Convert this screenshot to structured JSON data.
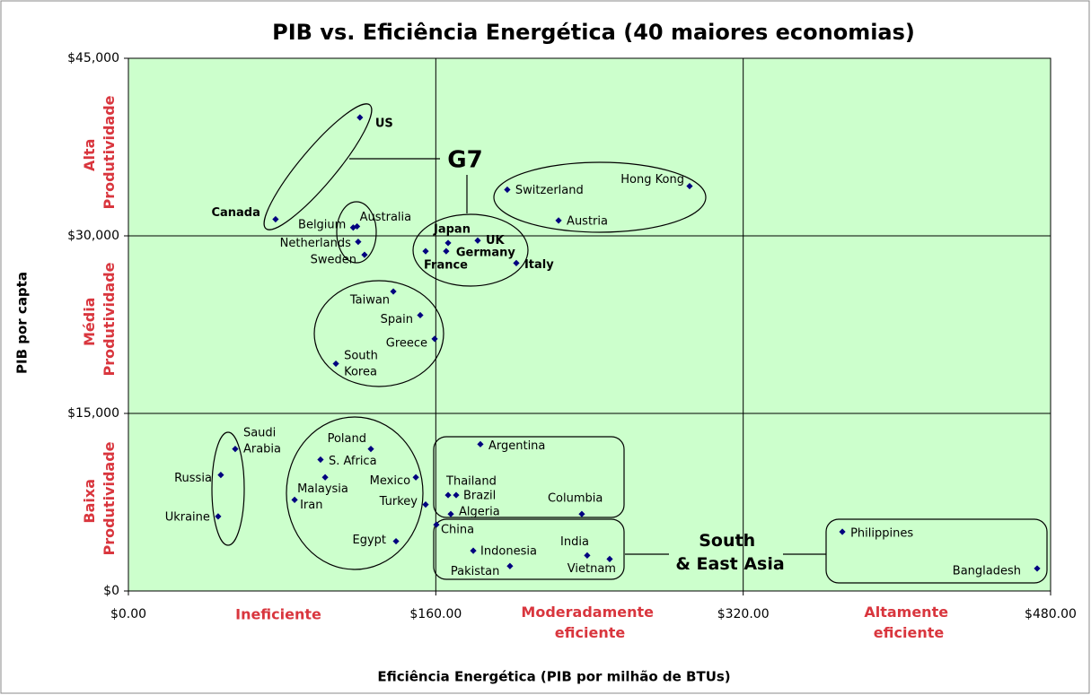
{
  "chart_data": {
    "type": "scatter",
    "title": "PIB vs. Eficiência Energética (40 maiores economias)",
    "xlabel": "Eficiência Energética (PIB por milhão de BTUs)",
    "ylabel": "PIB por capta",
    "xlim": [
      0,
      480
    ],
    "ylim": [
      0,
      45000
    ],
    "xticks": [
      {
        "value": 0,
        "label": "$0.00"
      },
      {
        "value": 160,
        "label": "$160.00"
      },
      {
        "value": 320,
        "label": "$320.00"
      },
      {
        "value": 480,
        "label": "$480.00"
      }
    ],
    "yticks": [
      {
        "value": 0,
        "label": "$0"
      },
      {
        "value": 15000,
        "label": "$15,000"
      },
      {
        "value": 30000,
        "label": "$30,000"
      },
      {
        "value": 45000,
        "label": "$45,000"
      }
    ],
    "grid": true,
    "color": "#00007f",
    "labels": [
      "US",
      "Canada",
      "Belgium",
      "Australia",
      "Netherlands",
      "Sweden",
      "Japan",
      "UK",
      "Germany",
      "France",
      "Italy",
      "Switzerland",
      "Hong Kong",
      "Austria",
      "Taiwan",
      "Spain",
      "Greece",
      "South Korea",
      "Saudi Arabia",
      "Russia",
      "Ukraine",
      "Poland",
      "S. Africa",
      "Mexico",
      "Malaysia",
      "Iran",
      "Turkey",
      "Egypt",
      "Argentina",
      "Thailand",
      "Brazil",
      "Algeria",
      "Columbia",
      "China",
      "Indonesia",
      "Pakistan",
      "India",
      "Vietnam",
      "Philippines",
      "Bangladesh"
    ],
    "x": [
      120.5,
      76.6,
      117,
      119,
      119.6,
      122.9,
      166.4,
      181.8,
      165.4,
      154.7,
      201.9,
      197.2,
      292.1,
      223.9,
      137.9,
      151.9,
      159.4,
      108,
      55.6,
      48.1,
      46.7,
      126.2,
      100,
      149.6,
      102.4,
      86.5,
      154.7,
      139.3,
      183.2,
      166.4,
      170.6,
      167.8,
      236,
      160.3,
      179.5,
      198.6,
      238.8,
      250.5,
      371.6,
      473
    ],
    "y": [
      40000,
      31400,
      30700,
      30800,
      29500,
      28400,
      29400,
      29600,
      28700,
      28700,
      27700,
      33900,
      34200,
      31300,
      25300,
      23300,
      21300,
      19200,
      12000,
      9800,
      6300,
      12000,
      11100,
      9600,
      9600,
      7700,
      7300,
      4200,
      12400,
      8100,
      8100,
      6500,
      6500,
      5600,
      3400,
      2100,
      3000,
      2700,
      5000,
      1900
    ],
    "annotations": {
      "productivity": [
        "Alta Produtividade",
        "Média Produtividade",
        "Baixa Produtividade"
      ],
      "efficiency": [
        "Ineficiente",
        "Moderadamente eficiente",
        "Altamente eficiente"
      ],
      "groups": [
        "G7",
        "South & East Asia"
      ]
    }
  }
}
